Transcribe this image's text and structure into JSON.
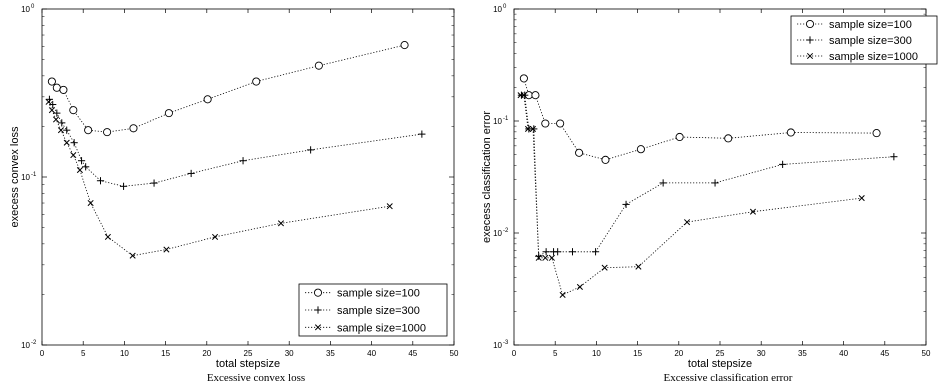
{
  "chart_data": [
    {
      "type": "line",
      "caption": "Excessive convex loss",
      "xlabel": "total stepsize",
      "ylabel": "execess convex loss",
      "xlim": [
        0,
        50
      ],
      "ylim": [
        0.01,
        1
      ],
      "yscale": "log",
      "xticks": [
        "0",
        "5",
        "10",
        "15",
        "20",
        "25",
        "30",
        "35",
        "40",
        "45",
        "50"
      ],
      "yticks": [
        {
          "value": 0.01,
          "base": "10",
          "exp": "-2"
        },
        {
          "value": 0.1,
          "base": "10",
          "exp": "-1"
        },
        {
          "value": 1,
          "base": "10",
          "exp": "0"
        }
      ],
      "legend_position": "bottom-right",
      "series": [
        {
          "name": "sample size=100",
          "marker": "circle",
          "x": [
            1.2,
            1.8,
            2.6,
            3.8,
            5.6,
            7.9,
            11.1,
            15.4,
            20.1,
            26.0,
            33.6,
            44.0
          ],
          "y": [
            0.37,
            0.34,
            0.33,
            0.25,
            0.19,
            0.185,
            0.195,
            0.24,
            0.29,
            0.37,
            0.46,
            0.61
          ]
        },
        {
          "name": "sample size=300",
          "marker": "plus",
          "x": [
            0.9,
            1.3,
            1.8,
            2.4,
            3.0,
            3.9,
            4.8,
            5.3,
            7.1,
            9.9,
            13.6,
            18.1,
            24.4,
            32.6,
            46.1
          ],
          "y": [
            0.29,
            0.27,
            0.24,
            0.21,
            0.19,
            0.16,
            0.125,
            0.115,
            0.095,
            0.088,
            0.092,
            0.105,
            0.125,
            0.145,
            0.18
          ]
        },
        {
          "name": "sample size=1000",
          "marker": "x",
          "x": [
            0.8,
            1.2,
            1.7,
            2.3,
            3.0,
            3.8,
            4.6,
            5.9,
            8.0,
            11.0,
            15.1,
            21.0,
            29.0,
            42.2
          ],
          "y": [
            0.28,
            0.25,
            0.22,
            0.19,
            0.16,
            0.135,
            0.11,
            0.07,
            0.044,
            0.034,
            0.037,
            0.044,
            0.053,
            0.067
          ]
        }
      ]
    },
    {
      "type": "line",
      "caption": "Excessive classification error",
      "xlabel": "total stepsize",
      "ylabel": "execess classification error",
      "xlim": [
        0,
        50
      ],
      "ylim": [
        0.001,
        1
      ],
      "yscale": "log",
      "xticks": [
        "0",
        "5",
        "10",
        "15",
        "20",
        "25",
        "30",
        "35",
        "40",
        "45",
        "50"
      ],
      "yticks": [
        {
          "value": 0.001,
          "base": "10",
          "exp": "-3"
        },
        {
          "value": 0.01,
          "base": "10",
          "exp": "-2"
        },
        {
          "value": 0.1,
          "base": "10",
          "exp": "-1"
        },
        {
          "value": 1,
          "base": "10",
          "exp": "0"
        }
      ],
      "legend_position": "top-right",
      "series": [
        {
          "name": "sample size=100",
          "marker": "circle",
          "x": [
            1.2,
            1.8,
            2.6,
            3.8,
            5.6,
            7.9,
            11.1,
            15.4,
            20.1,
            26.0,
            33.6,
            44.0
          ],
          "y": [
            0.24,
            0.17,
            0.17,
            0.095,
            0.095,
            0.052,
            0.045,
            0.056,
            0.072,
            0.07,
            0.079,
            0.078
          ]
        },
        {
          "name": "sample size=300",
          "marker": "plus",
          "x": [
            0.9,
            1.3,
            1.8,
            2.4,
            3.0,
            3.9,
            4.8,
            5.3,
            7.1,
            9.9,
            13.6,
            18.1,
            24.4,
            32.6,
            46.1
          ],
          "y": [
            0.17,
            0.17,
            0.085,
            0.085,
            0.0062,
            0.0068,
            0.0068,
            0.0068,
            0.0068,
            0.0068,
            0.018,
            0.028,
            0.028,
            0.041,
            0.048
          ]
        },
        {
          "name": "sample size=1000",
          "marker": "x",
          "x": [
            0.8,
            1.2,
            1.7,
            2.3,
            3.0,
            3.8,
            4.6,
            5.9,
            8.0,
            11.0,
            15.1,
            21.0,
            29.0,
            42.2
          ],
          "y": [
            0.17,
            0.17,
            0.085,
            0.085,
            0.006,
            0.006,
            0.006,
            0.0028,
            0.0033,
            0.0049,
            0.005,
            0.0125,
            0.0155,
            0.0205
          ]
        }
      ]
    }
  ]
}
